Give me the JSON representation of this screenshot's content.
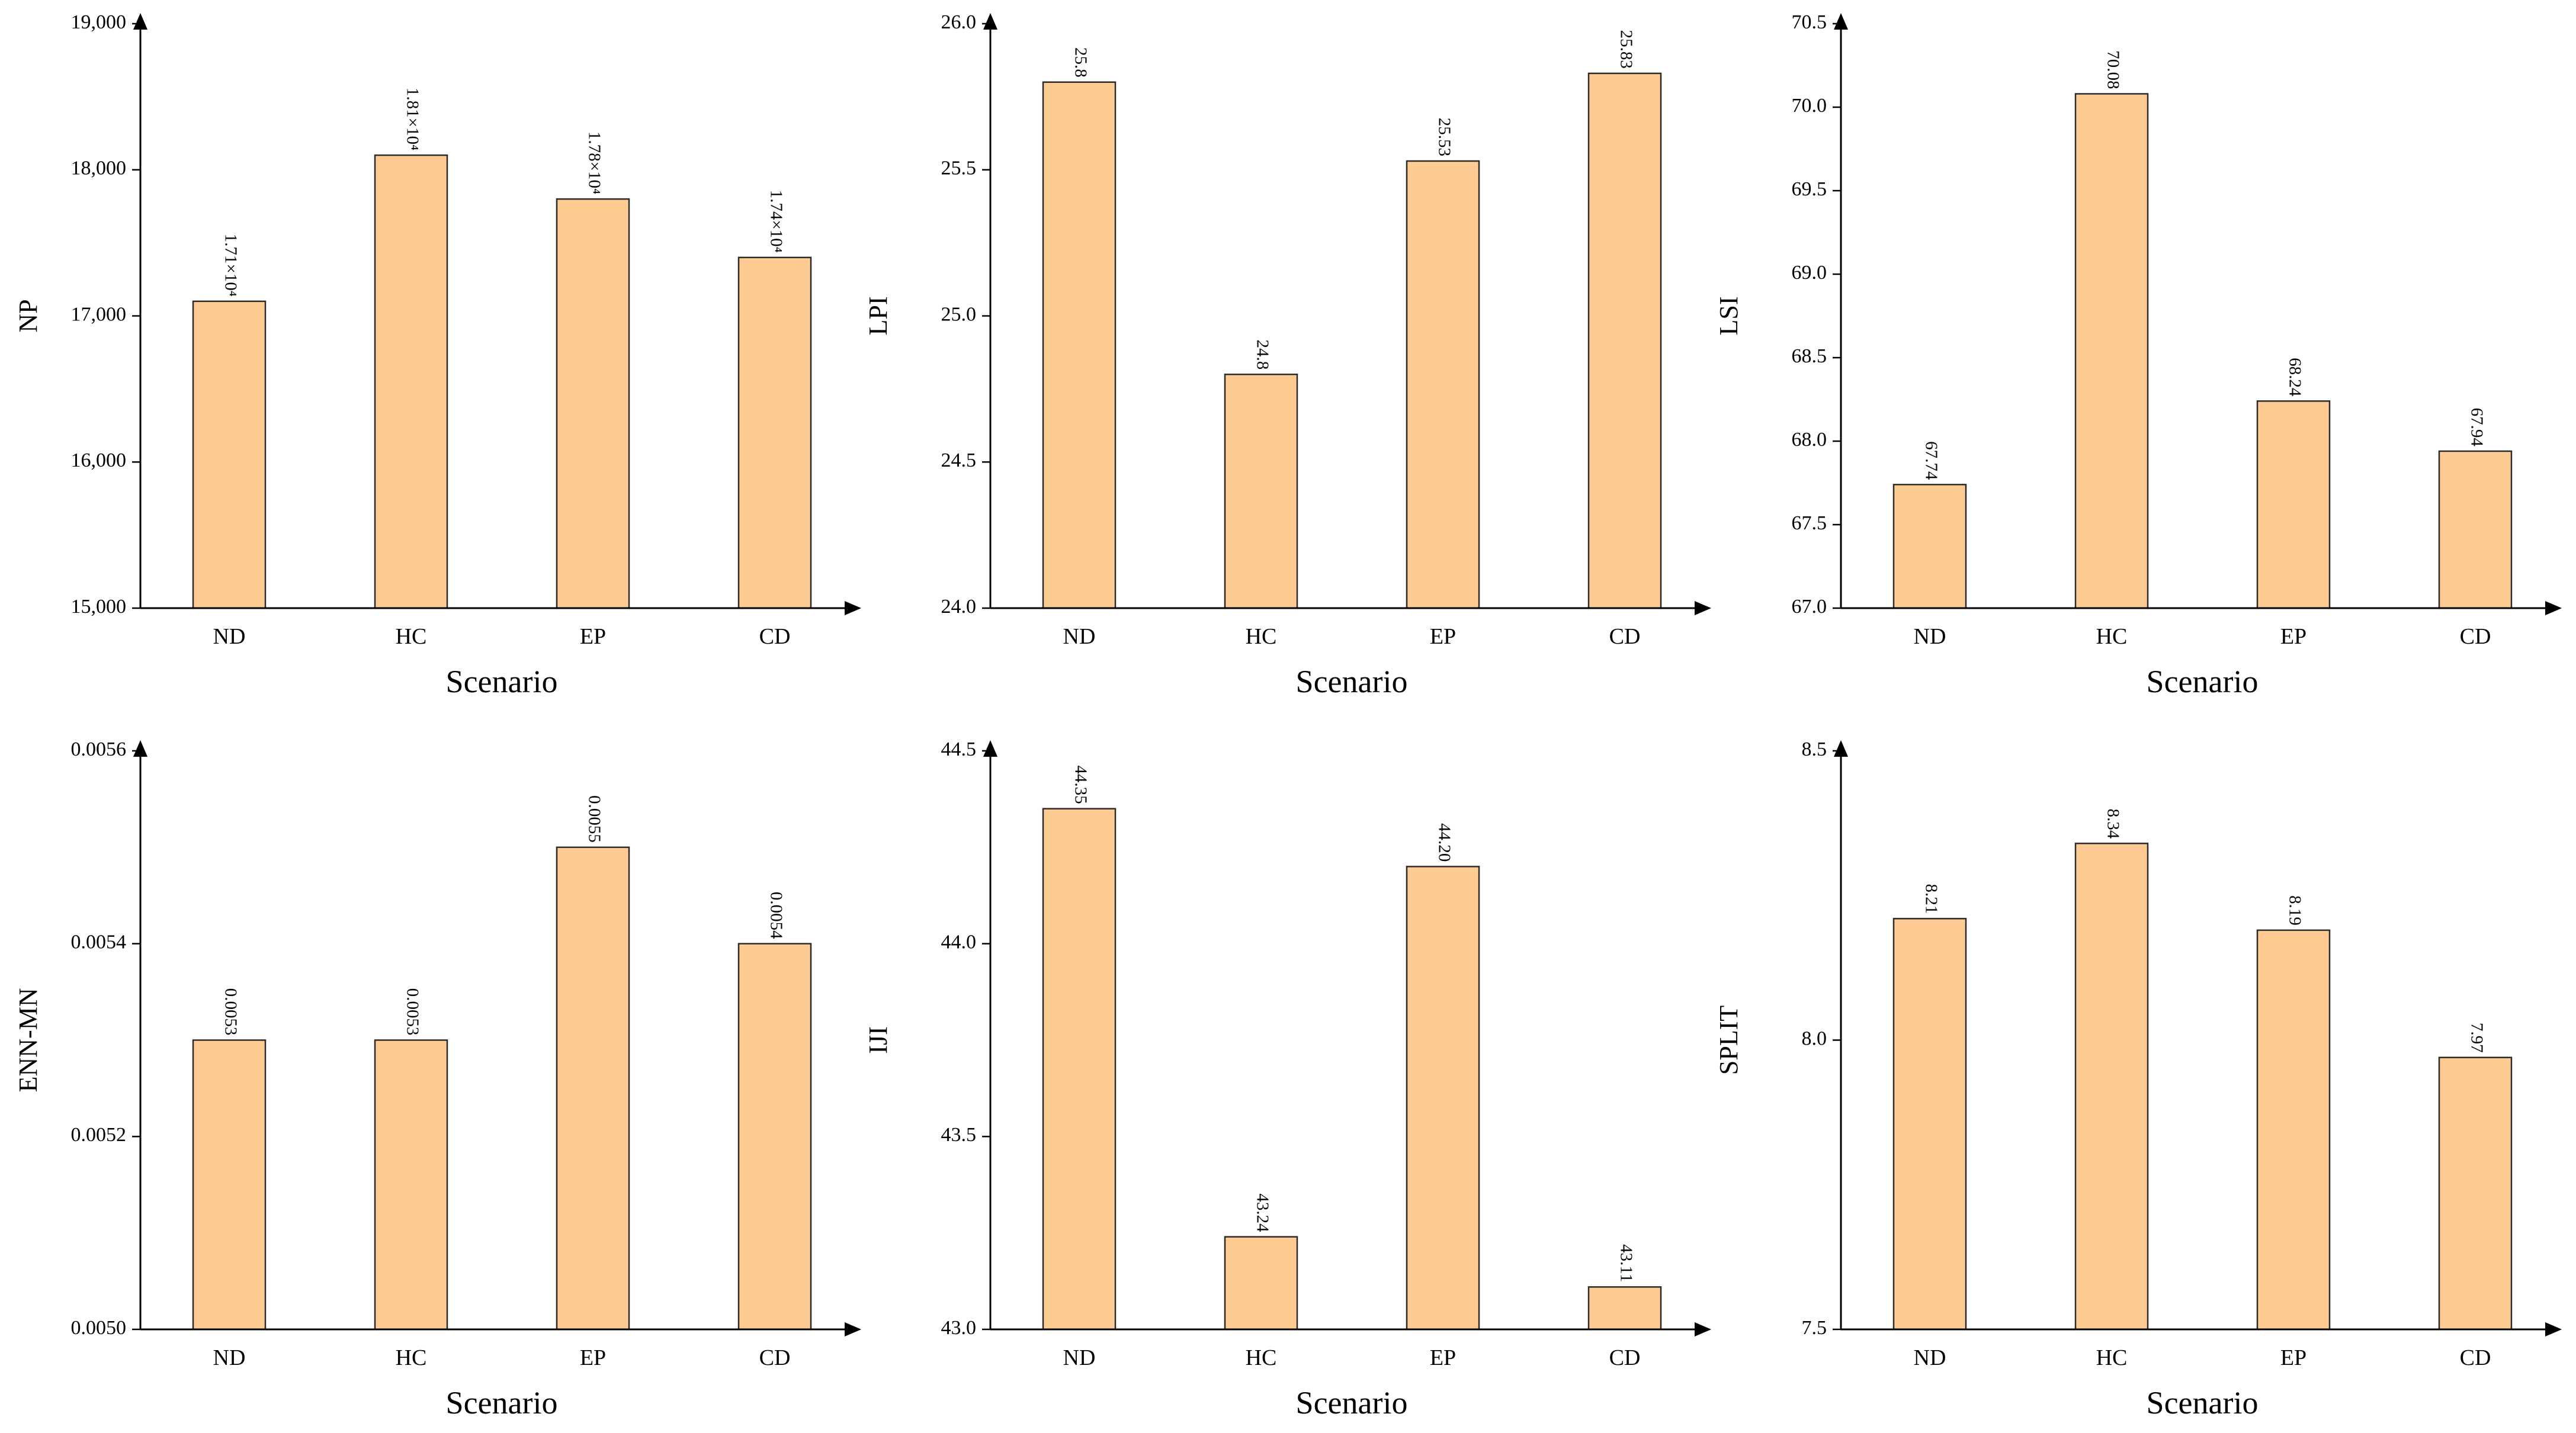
{
  "chart_data": [
    {
      "type": "bar",
      "categories": [
        "ND",
        "HC",
        "EP",
        "CD"
      ],
      "values": [
        17100,
        18100,
        17800,
        17400
      ],
      "data_labels": [
        "1.71×10⁴",
        "1.81×10⁴",
        "1.78×10⁴",
        "1.74×10⁴"
      ],
      "ylabel": "NP",
      "xlabel": "Scenario",
      "ylim": [
        15000,
        19000
      ],
      "yticks": [
        15000,
        16000,
        17000,
        18000,
        19000
      ],
      "ytick_labels": [
        "15,000",
        "16,000",
        "17,000",
        "18,000",
        "19,000"
      ],
      "bar_color": "#fecb93",
      "grid": false
    },
    {
      "type": "bar",
      "categories": [
        "ND",
        "HC",
        "EP",
        "CD"
      ],
      "values": [
        25.8,
        24.8,
        25.53,
        25.83
      ],
      "data_labels": [
        "25.8",
        "24.8",
        "25.53",
        "25.83"
      ],
      "ylabel": "LPI",
      "xlabel": "Scenario",
      "ylim": [
        24.0,
        26.0
      ],
      "yticks": [
        24.0,
        24.5,
        25.0,
        25.5,
        26.0
      ],
      "ytick_labels": [
        "24.0",
        "24.5",
        "25.0",
        "25.5",
        "26.0"
      ],
      "bar_color": "#fecb93",
      "grid": false
    },
    {
      "type": "bar",
      "categories": [
        "ND",
        "HC",
        "EP",
        "CD"
      ],
      "values": [
        67.74,
        70.08,
        68.24,
        67.94
      ],
      "data_labels": [
        "67.74",
        "70.08",
        "68.24",
        "67.94"
      ],
      "ylabel": "LSI",
      "xlabel": "Scenario",
      "ylim": [
        67.0,
        70.5
      ],
      "yticks": [
        67.0,
        67.5,
        68.0,
        68.5,
        69.0,
        69.5,
        70.0,
        70.5
      ],
      "ytick_labels": [
        "67.0",
        "67.5",
        "68.0",
        "68.5",
        "69.0",
        "69.5",
        "70.0",
        "70.5"
      ],
      "bar_color": "#fecb93",
      "grid": false
    },
    {
      "type": "bar",
      "categories": [
        "ND",
        "HC",
        "EP",
        "CD"
      ],
      "values": [
        0.0053,
        0.0053,
        0.0055,
        0.0054
      ],
      "data_labels": [
        "0.0053",
        "0.0053",
        "0.0055",
        "0.0054"
      ],
      "ylabel": "ENN-MN",
      "xlabel": "Scenario",
      "ylim": [
        0.005,
        0.0056
      ],
      "yticks": [
        0.005,
        0.0052,
        0.0054,
        0.0056
      ],
      "ytick_labels": [
        "0.0050",
        "0.0052",
        "0.0054",
        "0.0056"
      ],
      "bar_color": "#fecb93",
      "grid": false
    },
    {
      "type": "bar",
      "categories": [
        "ND",
        "HC",
        "EP",
        "CD"
      ],
      "values": [
        44.35,
        43.24,
        44.2,
        43.11
      ],
      "data_labels": [
        "44.35",
        "43.24",
        "44.20",
        "43.11"
      ],
      "ylabel": "IJI",
      "xlabel": "Scenario",
      "ylim": [
        43.0,
        44.5
      ],
      "yticks": [
        43.0,
        43.5,
        44.0,
        44.5
      ],
      "ytick_labels": [
        "43.0",
        "43.5",
        "44.0",
        "44.5"
      ],
      "bar_color": "#fecb93",
      "grid": false
    },
    {
      "type": "bar",
      "categories": [
        "ND",
        "HC",
        "EP",
        "CD"
      ],
      "values": [
        8.21,
        8.34,
        8.19,
        7.97
      ],
      "data_labels": [
        "8.21",
        "8.34",
        "8.19",
        "7.97"
      ],
      "ylabel": "SPLIT",
      "xlabel": "Scenario",
      "ylim": [
        7.5,
        8.5
      ],
      "yticks": [
        7.5,
        8.0,
        8.5
      ],
      "ytick_labels": [
        "7.5",
        "8.0",
        "8.5"
      ],
      "bar_color": "#fecb93",
      "grid": false
    }
  ]
}
